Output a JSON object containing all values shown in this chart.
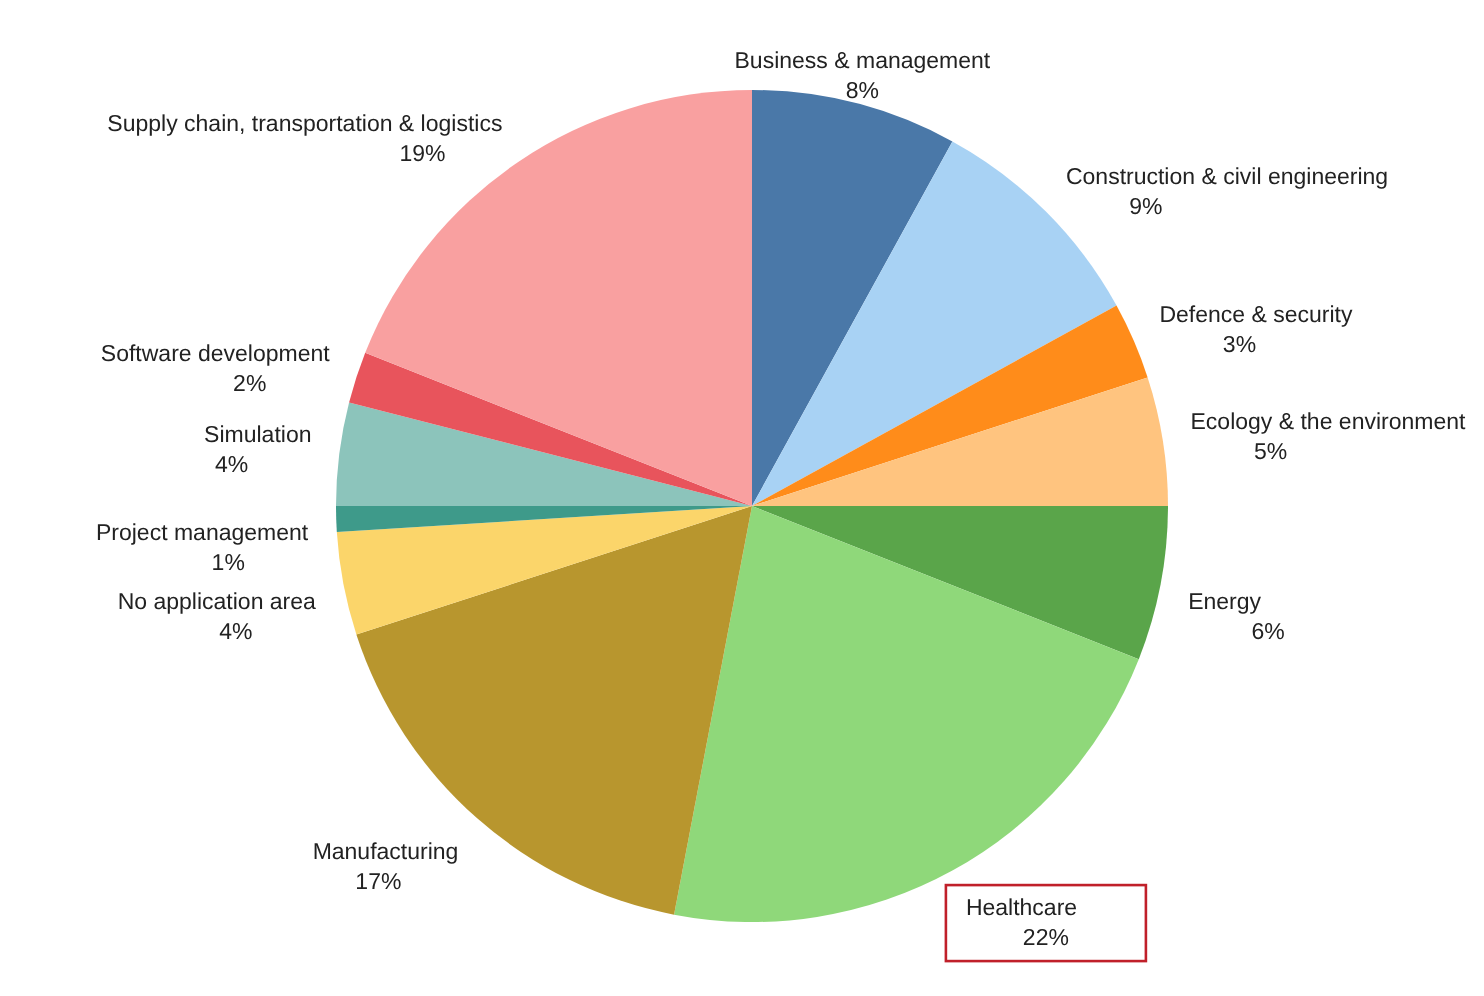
{
  "chart_data": {
    "type": "pie",
    "categories": [
      "Business & management",
      "Construction & civil engineering",
      "Defence & security",
      "Ecology & the environment",
      "Energy",
      "Healthcare",
      "Manufacturing",
      "No application area",
      "Project management",
      "Simulation",
      "Software development",
      "Supply chain, transportation & logistics"
    ],
    "values": [
      8,
      9,
      3,
      5,
      6,
      22,
      17,
      4,
      1,
      4,
      2,
      19
    ],
    "value_labels": [
      "8%",
      "9%",
      "3%",
      "5%",
      "6%",
      "22%",
      "17%",
      "4%",
      "1%",
      "4%",
      "2%",
      "19%"
    ],
    "colors": [
      "#4a78a8",
      "#a8d2f4",
      "#ff8c1a",
      "#ffc47f",
      "#5aa54a",
      "#8fd87a",
      "#b8962e",
      "#fbd56a",
      "#3e9a8a",
      "#8cc4bb",
      "#e8545c",
      "#f9a0a0"
    ]
  }
}
